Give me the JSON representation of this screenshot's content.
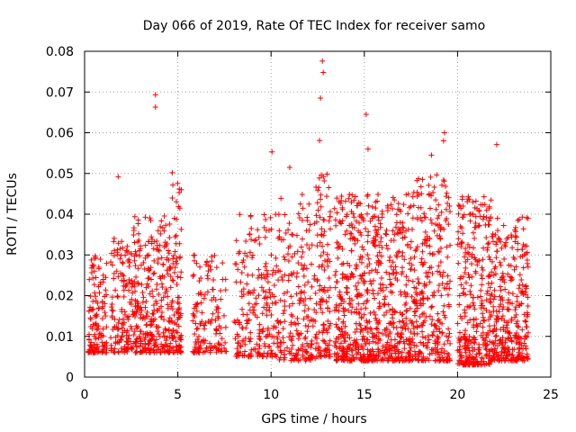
{
  "chart_data": {
    "type": "scatter",
    "title": "Day 066 of 2019, Rate Of TEC Index for receiver samo",
    "xlabel": "GPS time / hours",
    "ylabel": "ROTI / TECUs",
    "xlim": [
      0,
      25
    ],
    "ylim": [
      0,
      0.08
    ],
    "x_ticks": [
      "0",
      "5",
      "10",
      "15",
      "20",
      "25"
    ],
    "y_ticks": [
      "0",
      "0.01",
      "0.02",
      "0.03",
      "0.04",
      "0.05",
      "0.06",
      "0.07",
      "0.08"
    ],
    "grid": true,
    "marker": "+",
    "color": "#ff0000",
    "series": [
      {
        "name": "ROTI",
        "clusters": [
          {
            "x": [
              0.2,
              1.2
            ],
            "y": [
              0.006,
              0.03
            ],
            "n": 130
          },
          {
            "x": [
              1.4,
              2.4
            ],
            "y": [
              0.006,
              0.035
            ],
            "n": 120
          },
          {
            "x": [
              2.4,
              3.6
            ],
            "y": [
              0.006,
              0.04
            ],
            "n": 170
          },
          {
            "x": [
              3.6,
              4.7
            ],
            "y": [
              0.006,
              0.04
            ],
            "n": 150
          },
          {
            "x": [
              4.7,
              5.2
            ],
            "y": [
              0.006,
              0.048
            ],
            "n": 90
          },
          {
            "x": [
              5.8,
              7.6
            ],
            "y": [
              0.006,
              0.03
            ],
            "n": 140
          },
          {
            "x": [
              8.0,
              10.4
            ],
            "y": [
              0.005,
              0.04
            ],
            "n": 220
          },
          {
            "x": [
              10.4,
              12.4
            ],
            "y": [
              0.004,
              0.045
            ],
            "n": 200
          },
          {
            "x": [
              12.4,
              13.2
            ],
            "y": [
              0.005,
              0.05
            ],
            "n": 120
          },
          {
            "x": [
              13.4,
              15.6
            ],
            "y": [
              0.004,
              0.045
            ],
            "n": 380
          },
          {
            "x": [
              15.6,
              17.6
            ],
            "y": [
              0.004,
              0.045
            ],
            "n": 320
          },
          {
            "x": [
              17.6,
              19.6
            ],
            "y": [
              0.004,
              0.05
            ],
            "n": 300
          },
          {
            "x": [
              20.0,
              21.8
            ],
            "y": [
              0.003,
              0.045
            ],
            "n": 320
          },
          {
            "x": [
              21.8,
              23.8
            ],
            "y": [
              0.004,
              0.04
            ],
            "n": 320
          }
        ],
        "peaks": [
          {
            "x": 3.8,
            "y": 0.0693
          },
          {
            "x": 3.8,
            "y": 0.0663
          },
          {
            "x": 12.75,
            "y": 0.0776
          },
          {
            "x": 12.8,
            "y": 0.0748
          },
          {
            "x": 12.65,
            "y": 0.0685
          },
          {
            "x": 12.6,
            "y": 0.0581
          },
          {
            "x": 15.1,
            "y": 0.0645
          },
          {
            "x": 19.3,
            "y": 0.06
          },
          {
            "x": 19.25,
            "y": 0.058
          },
          {
            "x": 22.1,
            "y": 0.0571
          },
          {
            "x": 10.05,
            "y": 0.0553
          },
          {
            "x": 15.2,
            "y": 0.056
          },
          {
            "x": 18.6,
            "y": 0.0545
          },
          {
            "x": 1.8,
            "y": 0.0492
          },
          {
            "x": 4.7,
            "y": 0.0502
          },
          {
            "x": 11.0,
            "y": 0.0515
          }
        ]
      }
    ]
  }
}
